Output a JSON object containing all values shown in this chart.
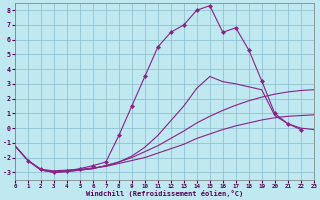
{
  "background_color": "#c0e8f0",
  "grid_color": "#88bbcc",
  "line_color": "#882288",
  "xlabel": "Windchill (Refroidissement éolien,°C)",
  "xlim": [
    0,
    23
  ],
  "ylim": [
    -3.5,
    8.5
  ],
  "x_ticks": [
    0,
    1,
    2,
    3,
    4,
    5,
    6,
    7,
    8,
    9,
    10,
    11,
    12,
    13,
    14,
    15,
    16,
    17,
    18,
    19,
    20,
    21,
    22,
    23
  ],
  "y_ticks": [
    -3,
    -2,
    -1,
    0,
    1,
    2,
    3,
    4,
    5,
    6,
    7,
    8
  ],
  "s1_x": [
    0,
    1,
    2,
    3,
    4,
    5,
    6,
    7,
    8,
    9,
    10,
    11,
    12,
    13,
    14,
    15,
    16,
    17,
    18,
    19,
    20,
    21,
    22,
    23
  ],
  "s1_y": [
    -1.2,
    -2.2,
    -2.8,
    -2.9,
    -2.85,
    -2.8,
    -2.7,
    -2.6,
    -2.4,
    -2.2,
    -2.0,
    -1.7,
    -1.4,
    -1.1,
    -0.7,
    -0.4,
    -0.1,
    0.15,
    0.35,
    0.55,
    0.7,
    0.8,
    0.85,
    0.9
  ],
  "s2_x": [
    0,
    1,
    2,
    3,
    4,
    5,
    6,
    7,
    8,
    9,
    10,
    11,
    12,
    13,
    14,
    15,
    16,
    17,
    18,
    19,
    20,
    21,
    22,
    23
  ],
  "s2_y": [
    -1.2,
    -2.2,
    -2.85,
    -3.0,
    -2.95,
    -2.85,
    -2.75,
    -2.55,
    -2.3,
    -2.0,
    -1.6,
    -1.2,
    -0.7,
    -0.2,
    0.35,
    0.8,
    1.2,
    1.55,
    1.85,
    2.1,
    2.3,
    2.45,
    2.55,
    2.6
  ],
  "s3_x": [
    0,
    1,
    2,
    3,
    4,
    5,
    6,
    7,
    8,
    9,
    10,
    11,
    12,
    13,
    14,
    15,
    16,
    17,
    18,
    19,
    20,
    21,
    22,
    23
  ],
  "s3_y": [
    -1.2,
    -2.2,
    -2.85,
    -3.0,
    -2.95,
    -2.85,
    -2.75,
    -2.55,
    -2.3,
    -1.9,
    -1.3,
    -0.5,
    0.5,
    1.5,
    2.7,
    3.5,
    3.15,
    3.0,
    2.8,
    2.6,
    0.85,
    0.3,
    0.0,
    -0.1
  ],
  "s4_x": [
    1,
    2,
    3,
    4,
    5,
    6,
    7,
    8,
    9,
    10,
    11,
    12,
    13,
    14,
    15,
    16,
    17,
    18,
    19,
    20,
    21,
    22
  ],
  "s4_y": [
    -2.2,
    -2.8,
    -3.0,
    -2.9,
    -2.75,
    -2.55,
    -2.3,
    -0.5,
    1.5,
    3.5,
    5.5,
    6.5,
    7.0,
    8.0,
    8.3,
    6.5,
    6.8,
    5.3,
    3.2,
    1.0,
    0.3,
    -0.1
  ]
}
